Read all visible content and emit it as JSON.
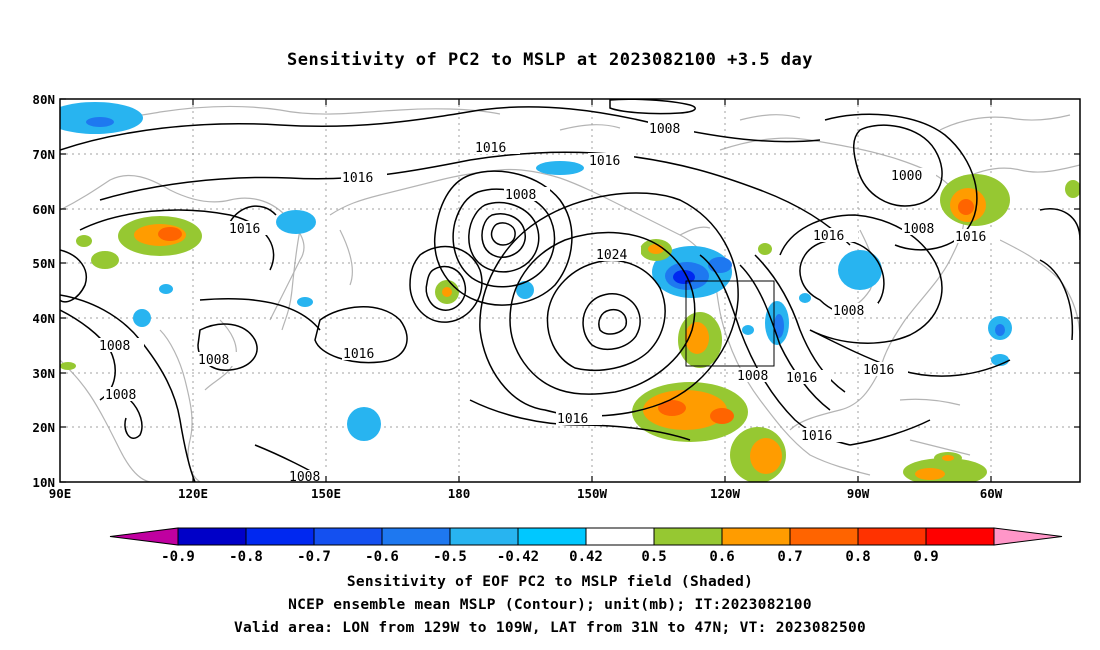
{
  "title": "Sensitivity of PC2 to MSLP at 2023082100 +3.5 day",
  "map": {
    "lat_ticks": [
      "80N",
      "70N",
      "60N",
      "50N",
      "40N",
      "30N",
      "20N",
      "10N"
    ],
    "lon_ticks": [
      "90E",
      "120E",
      "150E",
      "180",
      "150W",
      "120W",
      "90W",
      "60W"
    ],
    "lon_range": "90E to 35W",
    "lat_range": "10N to 80N",
    "grid": "dotted",
    "valid_area_box": {
      "lon_from": "129W",
      "lon_to": "109W",
      "lat_from": "31N",
      "lat_to": "47N"
    }
  },
  "contours": {
    "interval_mb": 8,
    "color": "#000000",
    "labels": [
      "1008",
      "1016",
      "1016",
      "1016",
      "1008",
      "1016",
      "1008",
      "1000",
      "1008",
      "1016",
      "1016",
      "1024",
      "1008",
      "1016",
      "1008",
      "1008",
      "1016",
      "1008",
      "1016",
      "1016",
      "1016",
      "1008"
    ]
  },
  "colorbar": {
    "labels": [
      "-0.9",
      "-0.8",
      "-0.7",
      "-0.6",
      "-0.5",
      "-0.42",
      "0.42",
      "0.5",
      "0.6",
      "0.7",
      "0.8",
      "0.9"
    ],
    "colors": [
      "#c000a0",
      "#0000c8",
      "#0028f0",
      "#1450f0",
      "#1e78f0",
      "#28b4f0",
      "#00c8ff",
      "#ffffff",
      "#96c832",
      "#ff9c00",
      "#ff6400",
      "#ff3200",
      "#ff0000",
      "#ff96c8"
    ]
  },
  "footer": {
    "line1": "Sensitivity of EOF PC2 to MSLP field (Shaded)",
    "line2": "NCEP ensemble mean MSLP (Contour); unit(mb); IT:2023082100",
    "line3": "Valid area: LON from 129W to 109W, LAT from 31N to 47N; VT: 2023082500"
  }
}
